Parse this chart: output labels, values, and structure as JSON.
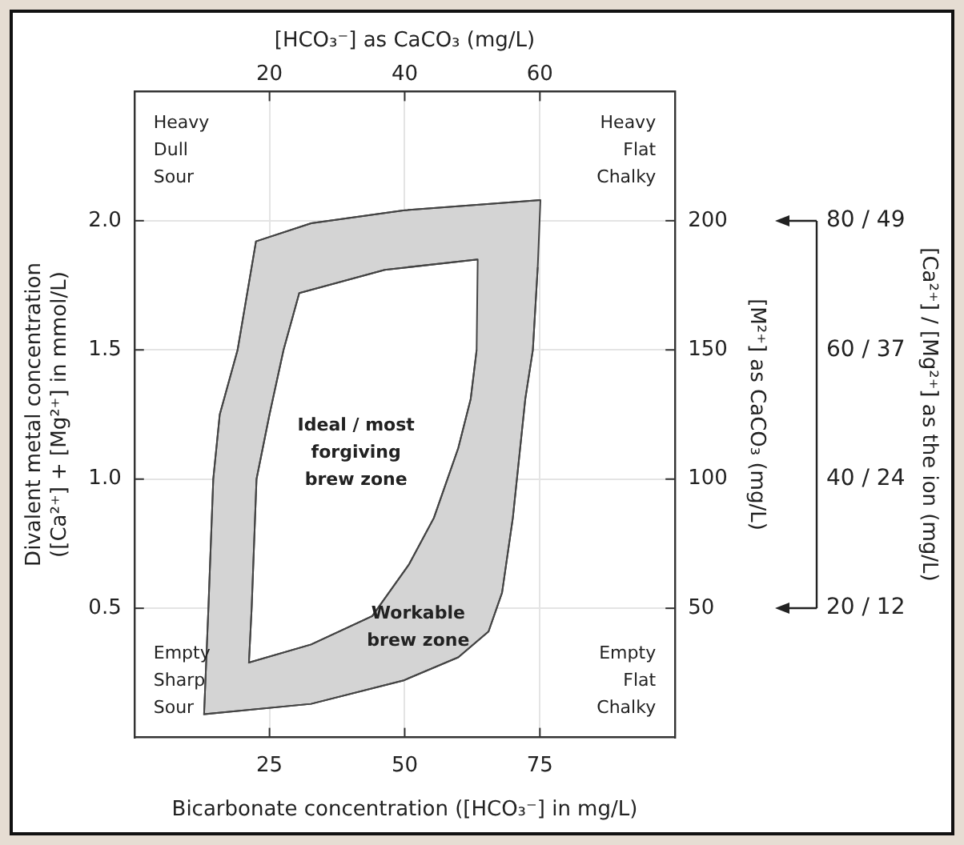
{
  "chart_data": {
    "type": "area",
    "xlabel": "Bicarbonate concentration ([HCO₃⁻] in mg/L)",
    "x2label": "[HCO₃⁻] as CaCO₃ (mg/L)",
    "ylabel": "Divalent metal concentration\n([Ca²⁺] + [Mg²⁺] in mmol/L)",
    "y2label": "[M²⁺] as CaCO₃ (mg/L)",
    "xlim": [
      0,
      100
    ],
    "xticks": [
      25,
      50,
      75
    ],
    "x2lim": [
      0,
      80
    ],
    "x2ticks": [
      20,
      40,
      60
    ],
    "ylim": [
      0,
      2.5
    ],
    "yticks": [
      {
        "value": 0.5,
        "label": "0.5"
      },
      {
        "value": 1,
        "label": "1.0"
      },
      {
        "value": 1.5,
        "label": "1.5"
      },
      {
        "value": 2,
        "label": "2.0"
      }
    ],
    "y2lim": [
      0,
      250
    ],
    "y2ticks": [
      50,
      100,
      150,
      200
    ],
    "grid": true,
    "legend": false,
    "series": [
      {
        "color": "#d4d4d4",
        "x": [
          75.1,
          49.7,
          32.7,
          22.5,
          19.1,
          15.8,
          14.6,
          13.7,
          12.9,
          32.7,
          49.7,
          59.9,
          65.5,
          68,
          70,
          72.3,
          73.7,
          74.6
        ],
        "values": [
          2.08,
          2.04,
          1.99,
          1.92,
          1.5,
          1.25,
          1,
          0.5,
          0.09,
          0.13,
          0.22,
          0.31,
          0.41,
          0.56,
          0.85,
          1.31,
          1.5,
          1.82
        ]
      },
      {
        "color": "#ffffff",
        "x": [
          63.5,
          46.3,
          30.5,
          27.6,
          25,
          22.6,
          21.7,
          21.2,
          32.7,
          44,
          50.8,
          55.4,
          59.9,
          62.2,
          63.3
        ],
        "values": [
          1.85,
          1.81,
          1.72,
          1.5,
          1.25,
          1,
          0.5,
          0.29,
          0.36,
          0.47,
          0.67,
          0.85,
          1.12,
          1.31,
          1.5
        ]
      }
    ],
    "annotations": [
      "Heavy\nDull\nSour",
      "Heavy\nFlat\nChalky",
      "Empty\nSharp\nSour",
      "Empty\nFlat\nChalky",
      "Ideal / most\nforgiving\nbrew zone",
      "Workable\nbrew zone",
      "20 / 12",
      "40 / 24",
      "60 / 37",
      "80 / 49",
      "[Ca²⁺] / [Mg²⁺] as the ion (mg/L)"
    ]
  }
}
